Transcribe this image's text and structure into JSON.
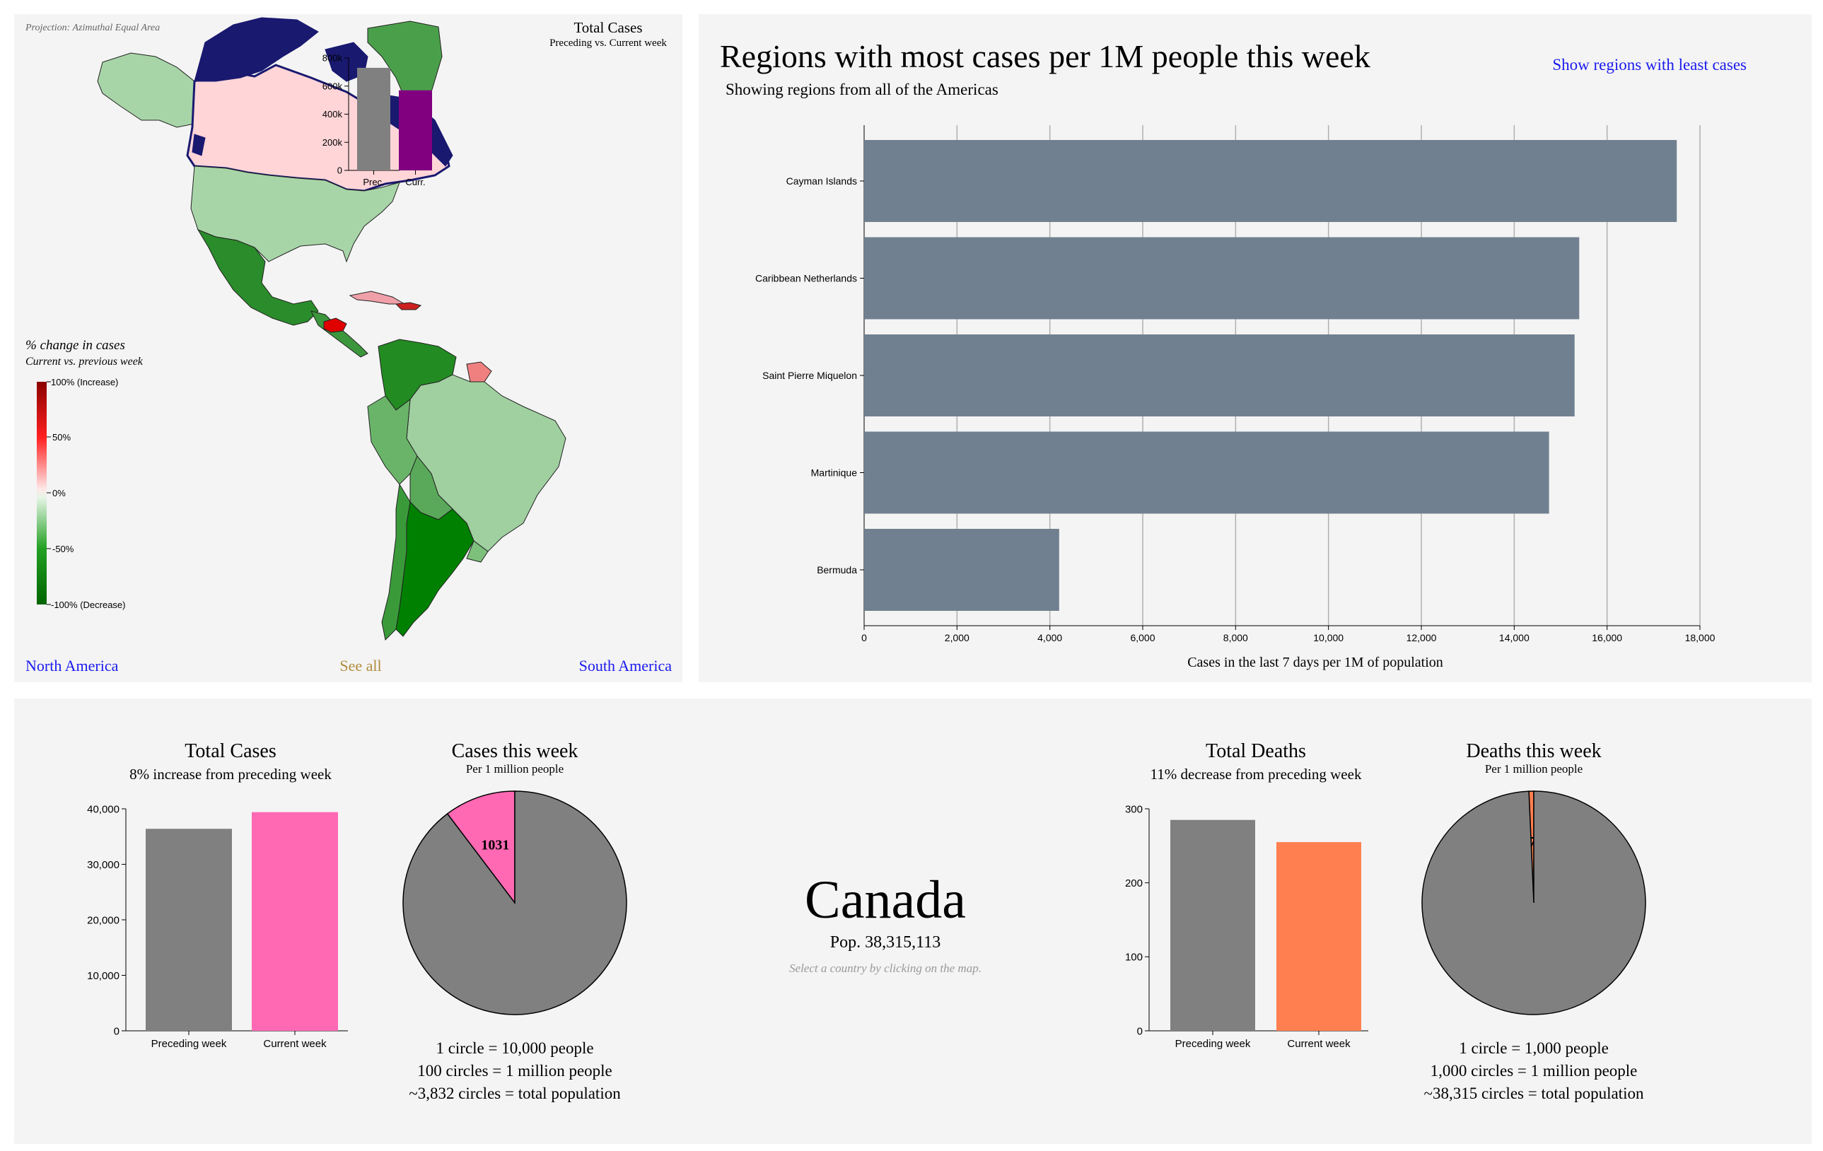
{
  "colors": {
    "panel_bg": "#f4f4f4",
    "bar_grey": "#708090",
    "prev_grey": "#808080",
    "current_purple": "#800080",
    "cases_pink": "#ff69b4",
    "deaths_orange": "#ff7f50",
    "link_blue": "#1a1aee",
    "link_gold": "#b08c3c",
    "selected_outline": "#191970"
  },
  "map_panel": {
    "projection_label": "Projection: Azimuthal Equal Area",
    "legend": {
      "title": "% change in cases",
      "subtitle": "Current vs. previous week",
      "ticks": [
        "100% (Increase)",
        "50%",
        "0%",
        "-50%",
        "-100% (Decrease)"
      ]
    },
    "links": {
      "north": "North America",
      "all": "See all",
      "south": "South America"
    }
  },
  "chart_data": [
    {
      "id": "mini_total_cases",
      "type": "bar",
      "title": "Total Cases",
      "subtitle": "Preceding vs. Current week",
      "categories": [
        "Prec.",
        "Curr."
      ],
      "values": [
        730000,
        570000
      ],
      "ylim": [
        0,
        800000
      ],
      "yticks": [
        "0",
        "200k",
        "400k",
        "600k",
        "800k"
      ],
      "colors": [
        "#808080",
        "#800080"
      ]
    },
    {
      "id": "regions_per_million",
      "type": "bar",
      "orientation": "horizontal",
      "title": "Regions with most cases per 1M people this week",
      "subtitle": "Showing regions from all of the Americas",
      "categories": [
        "Cayman Islands",
        "Caribbean Netherlands",
        "Saint Pierre Miquelon",
        "Martinique",
        "Bermuda"
      ],
      "values": [
        17500,
        15400,
        15300,
        14750,
        4200
      ],
      "xlabel": "Cases in the last 7 days per 1M of population",
      "xlim": [
        0,
        18000
      ],
      "xticks": [
        "0",
        "2,000",
        "4,000",
        "6,000",
        "8,000",
        "10,000",
        "12,000",
        "14,000",
        "16,000",
        "18,000"
      ],
      "grid": true
    },
    {
      "id": "total_cases",
      "type": "bar",
      "title": "Total Cases",
      "subtitle": "8% increase from preceding week",
      "categories": [
        "Preceding week",
        "Current week"
      ],
      "values": [
        36400,
        39400
      ],
      "ylim": [
        0,
        40000
      ],
      "yticks": [
        "0",
        "10,000",
        "20,000",
        "30,000",
        "40,000"
      ],
      "colors": [
        "#808080",
        "#ff69b4"
      ]
    },
    {
      "id": "cases_pie",
      "type": "pie",
      "title": "Cases this week",
      "subtitle": "Per 1 million people",
      "slices": [
        {
          "label": "1031",
          "value": 1031,
          "color": "#ff69b4"
        },
        {
          "label": "",
          "value": 8969,
          "color": "#808080"
        }
      ]
    },
    {
      "id": "total_deaths",
      "type": "bar",
      "title": "Total Deaths",
      "subtitle": "11% decrease from preceding week",
      "categories": [
        "Preceding week",
        "Current week"
      ],
      "values": [
        285,
        255
      ],
      "ylim": [
        0,
        300
      ],
      "yticks": [
        "0",
        "100",
        "200",
        "300"
      ],
      "colors": [
        "#808080",
        "#ff7f50"
      ]
    },
    {
      "id": "deaths_pie",
      "type": "pie",
      "title": "Deaths this week",
      "subtitle": "Per 1 million people",
      "slices": [
        {
          "label": "7",
          "value": 7,
          "color": "#ff7f50"
        },
        {
          "label": "",
          "value": 993,
          "color": "#808080"
        }
      ]
    }
  ],
  "bar_panel": {
    "toggle_link": "Show regions with least cases"
  },
  "country": {
    "name": "Canada",
    "population": "Pop. 38,315,113",
    "hint": "Select a country by clicking on the map."
  },
  "cases_legend": [
    "1 circle = 10,000 people",
    "100 circles = 1 million people",
    "~3,832 circles = total population"
  ],
  "deaths_legend": [
    "1 circle = 1,000 people",
    "1,000 circles = 1 million people",
    "~38,315 circles = total population"
  ]
}
